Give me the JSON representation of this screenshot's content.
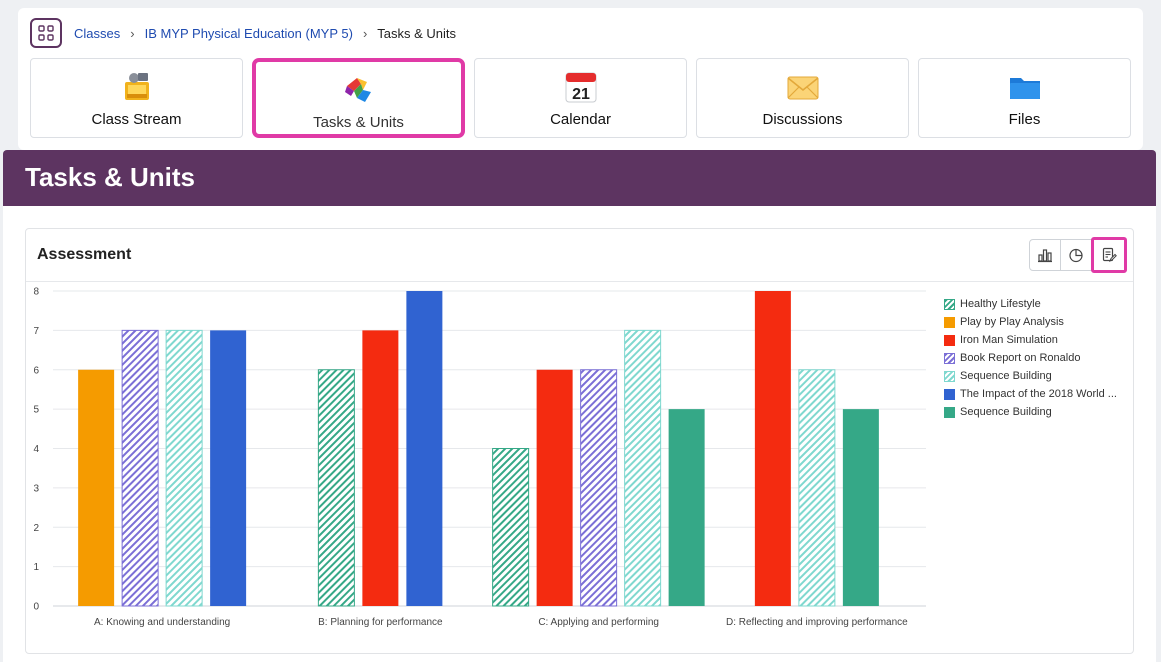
{
  "breadcrumb": {
    "items": [
      "Classes",
      "IB MYP Physical Education (MYP 5)"
    ],
    "current": "Tasks & Units"
  },
  "nav_tiles": [
    {
      "label": "Class Stream",
      "icon": "class-stream-icon"
    },
    {
      "label": "Tasks & Units",
      "icon": "puzzle-icon"
    },
    {
      "label": "Calendar",
      "icon": "calendar-icon"
    },
    {
      "label": "Discussions",
      "icon": "envelope-icon"
    },
    {
      "label": "Files",
      "icon": "folder-icon"
    }
  ],
  "page_title": "Tasks & Units",
  "panel": {
    "title": "Assessment"
  },
  "colors": {
    "accent": "#5d3461",
    "highlight": "#e03aa6",
    "green": "#35a887",
    "orange": "#f59b00",
    "red": "#f42b10",
    "purple": "#7b6fd6",
    "aqua": "#7fd8cf",
    "blue": "#3063d1"
  },
  "chart_data": {
    "type": "bar",
    "categories": [
      "A: Knowing and understanding",
      "B: Planning for performance",
      "C: Applying and performing",
      "D: Reflecting and improving performance"
    ],
    "ylim": [
      0,
      8
    ],
    "yticks": [
      0,
      1,
      2,
      3,
      4,
      5,
      6,
      7,
      8
    ],
    "grid": true,
    "legend_position": "right",
    "series": [
      {
        "name": "Healthy Lifestyle",
        "color": "#35a887",
        "pattern": "hatch",
        "values": [
          null,
          6,
          4,
          null
        ]
      },
      {
        "name": "Play by Play Analysis",
        "color": "#f59b00",
        "pattern": "solid",
        "values": [
          6,
          null,
          null,
          null
        ]
      },
      {
        "name": "Iron Man Simulation",
        "color": "#f42b10",
        "pattern": "solid",
        "values": [
          null,
          7,
          6,
          8
        ]
      },
      {
        "name": "Book Report on Ronaldo",
        "color": "#7b6fd6",
        "pattern": "hatch",
        "values": [
          7,
          null,
          6,
          null
        ]
      },
      {
        "name": "Sequence Building",
        "color": "#7fd8cf",
        "pattern": "hatch",
        "values": [
          7,
          null,
          7,
          6
        ]
      },
      {
        "name": "The Impact of the 2018 World ...",
        "color": "#3063d1",
        "pattern": "solid",
        "values": [
          7,
          8,
          null,
          null
        ]
      },
      {
        "name": "Sequence Building",
        "color": "#35a887",
        "pattern": "solid",
        "values": [
          null,
          null,
          5,
          5
        ]
      }
    ]
  }
}
